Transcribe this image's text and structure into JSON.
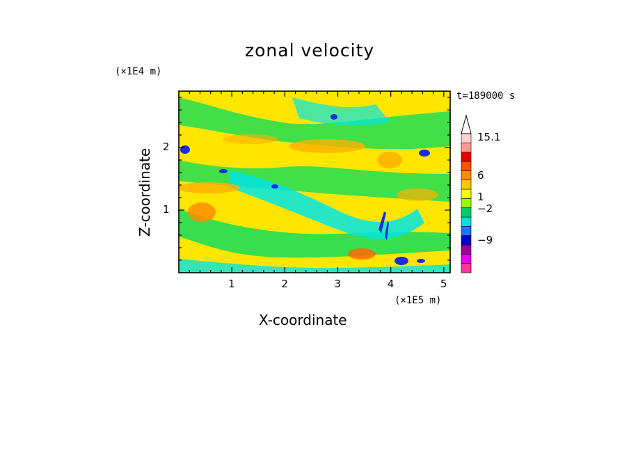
{
  "chart_data": {
    "type": "heatmap",
    "title": "zonal velocity",
    "xlabel": "X-coordinate",
    "ylabel": "Z-coordinate",
    "x_unit": "(×1E5 m)",
    "y_unit": "(×1E4 m)",
    "time_label": "t=189000 s",
    "xlim": [
      0,
      5.12
    ],
    "ylim": [
      0,
      2.9
    ],
    "x_ticks": [
      1,
      2,
      3,
      4,
      5
    ],
    "y_ticks": [
      1,
      2
    ],
    "colorbar": {
      "labels": [
        "15.1",
        "6",
        "1",
        "−2",
        "−9"
      ],
      "colors": [
        "#ff3399",
        "#e600e6",
        "#990099",
        "#0000cc",
        "#2a6bff",
        "#00e0e0",
        "#00cc66",
        "#99ff00",
        "#ffff00",
        "#ffc800",
        "#ff8c00",
        "#ff5000",
        "#e60000",
        "#ff9999",
        "#ffd0d0"
      ]
    }
  }
}
